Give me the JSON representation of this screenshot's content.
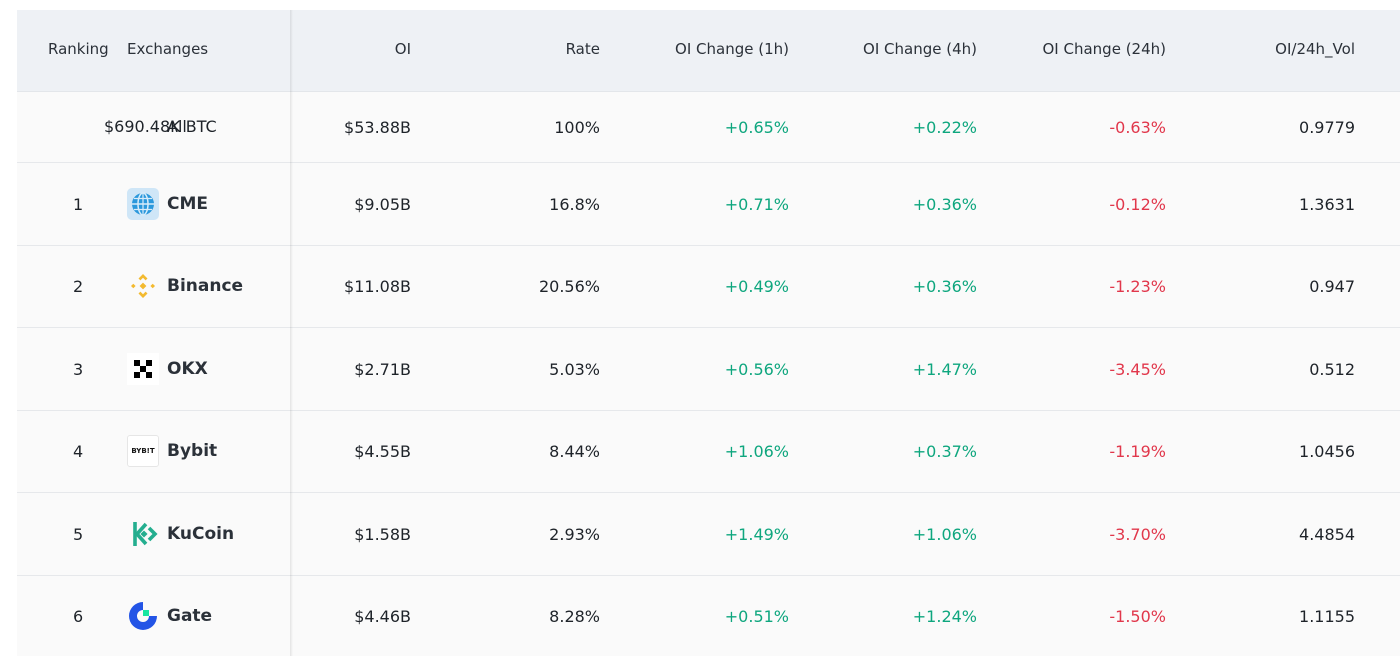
{
  "headers": {
    "ranking": "Ranking",
    "exchanges": "Exchanges",
    "oi": "OI",
    "rate": "Rate",
    "oi_1h": "OI Change (1h)",
    "oi_4h": "OI Change (4h)",
    "oi_24h": "OI Change (24h)",
    "oi_vol": "OI/24h_Vol"
  },
  "all_row": {
    "label": "All",
    "btc_amount": "$690.48K BTC",
    "oi": "$53.88B",
    "rate": "100%",
    "oi_1h": "+0.65%",
    "oi_4h": "+0.22%",
    "oi_24h": "-0.63%",
    "oi_vol": "0.9779"
  },
  "rows": [
    {
      "rank": "1",
      "name": "CME",
      "icon": "cme-globe-icon",
      "oi": "$9.05B",
      "rate": "16.8%",
      "oi_1h": "+0.71%",
      "oi_4h": "+0.36%",
      "oi_24h": "-0.12%",
      "oi_vol": "1.3631"
    },
    {
      "rank": "2",
      "name": "Binance",
      "icon": "binance-icon",
      "oi": "$11.08B",
      "rate": "20.56%",
      "oi_1h": "+0.49%",
      "oi_4h": "+0.36%",
      "oi_24h": "-1.23%",
      "oi_vol": "0.947"
    },
    {
      "rank": "3",
      "name": "OKX",
      "icon": "okx-icon",
      "oi": "$2.71B",
      "rate": "5.03%",
      "oi_1h": "+0.56%",
      "oi_4h": "+1.47%",
      "oi_24h": "-3.45%",
      "oi_vol": "0.512"
    },
    {
      "rank": "4",
      "name": "Bybit",
      "icon": "bybit-icon",
      "logo_text": "BYB!T",
      "oi": "$4.55B",
      "rate": "8.44%",
      "oi_1h": "+1.06%",
      "oi_4h": "+0.37%",
      "oi_24h": "-1.19%",
      "oi_vol": "1.0456"
    },
    {
      "rank": "5",
      "name": "KuCoin",
      "icon": "kucoin-icon",
      "oi": "$1.58B",
      "rate": "2.93%",
      "oi_1h": "+1.49%",
      "oi_4h": "+1.06%",
      "oi_24h": "-3.70%",
      "oi_vol": "4.4854"
    },
    {
      "rank": "6",
      "name": "Gate",
      "icon": "gate-icon",
      "oi": "$4.46B",
      "rate": "8.28%",
      "oi_1h": "+0.51%",
      "oi_4h": "+1.24%",
      "oi_24h": "-1.50%",
      "oi_vol": "1.1155"
    }
  ],
  "colors": {
    "positive": "#0ea67e",
    "negative": "#e1374b",
    "header_bg": "#eef1f5",
    "row_bg": "#fafafa",
    "binance": "#f3ba2f",
    "kucoin": "#24ae8f",
    "gate": "#2354e6",
    "cme": "#1f8fd6"
  }
}
